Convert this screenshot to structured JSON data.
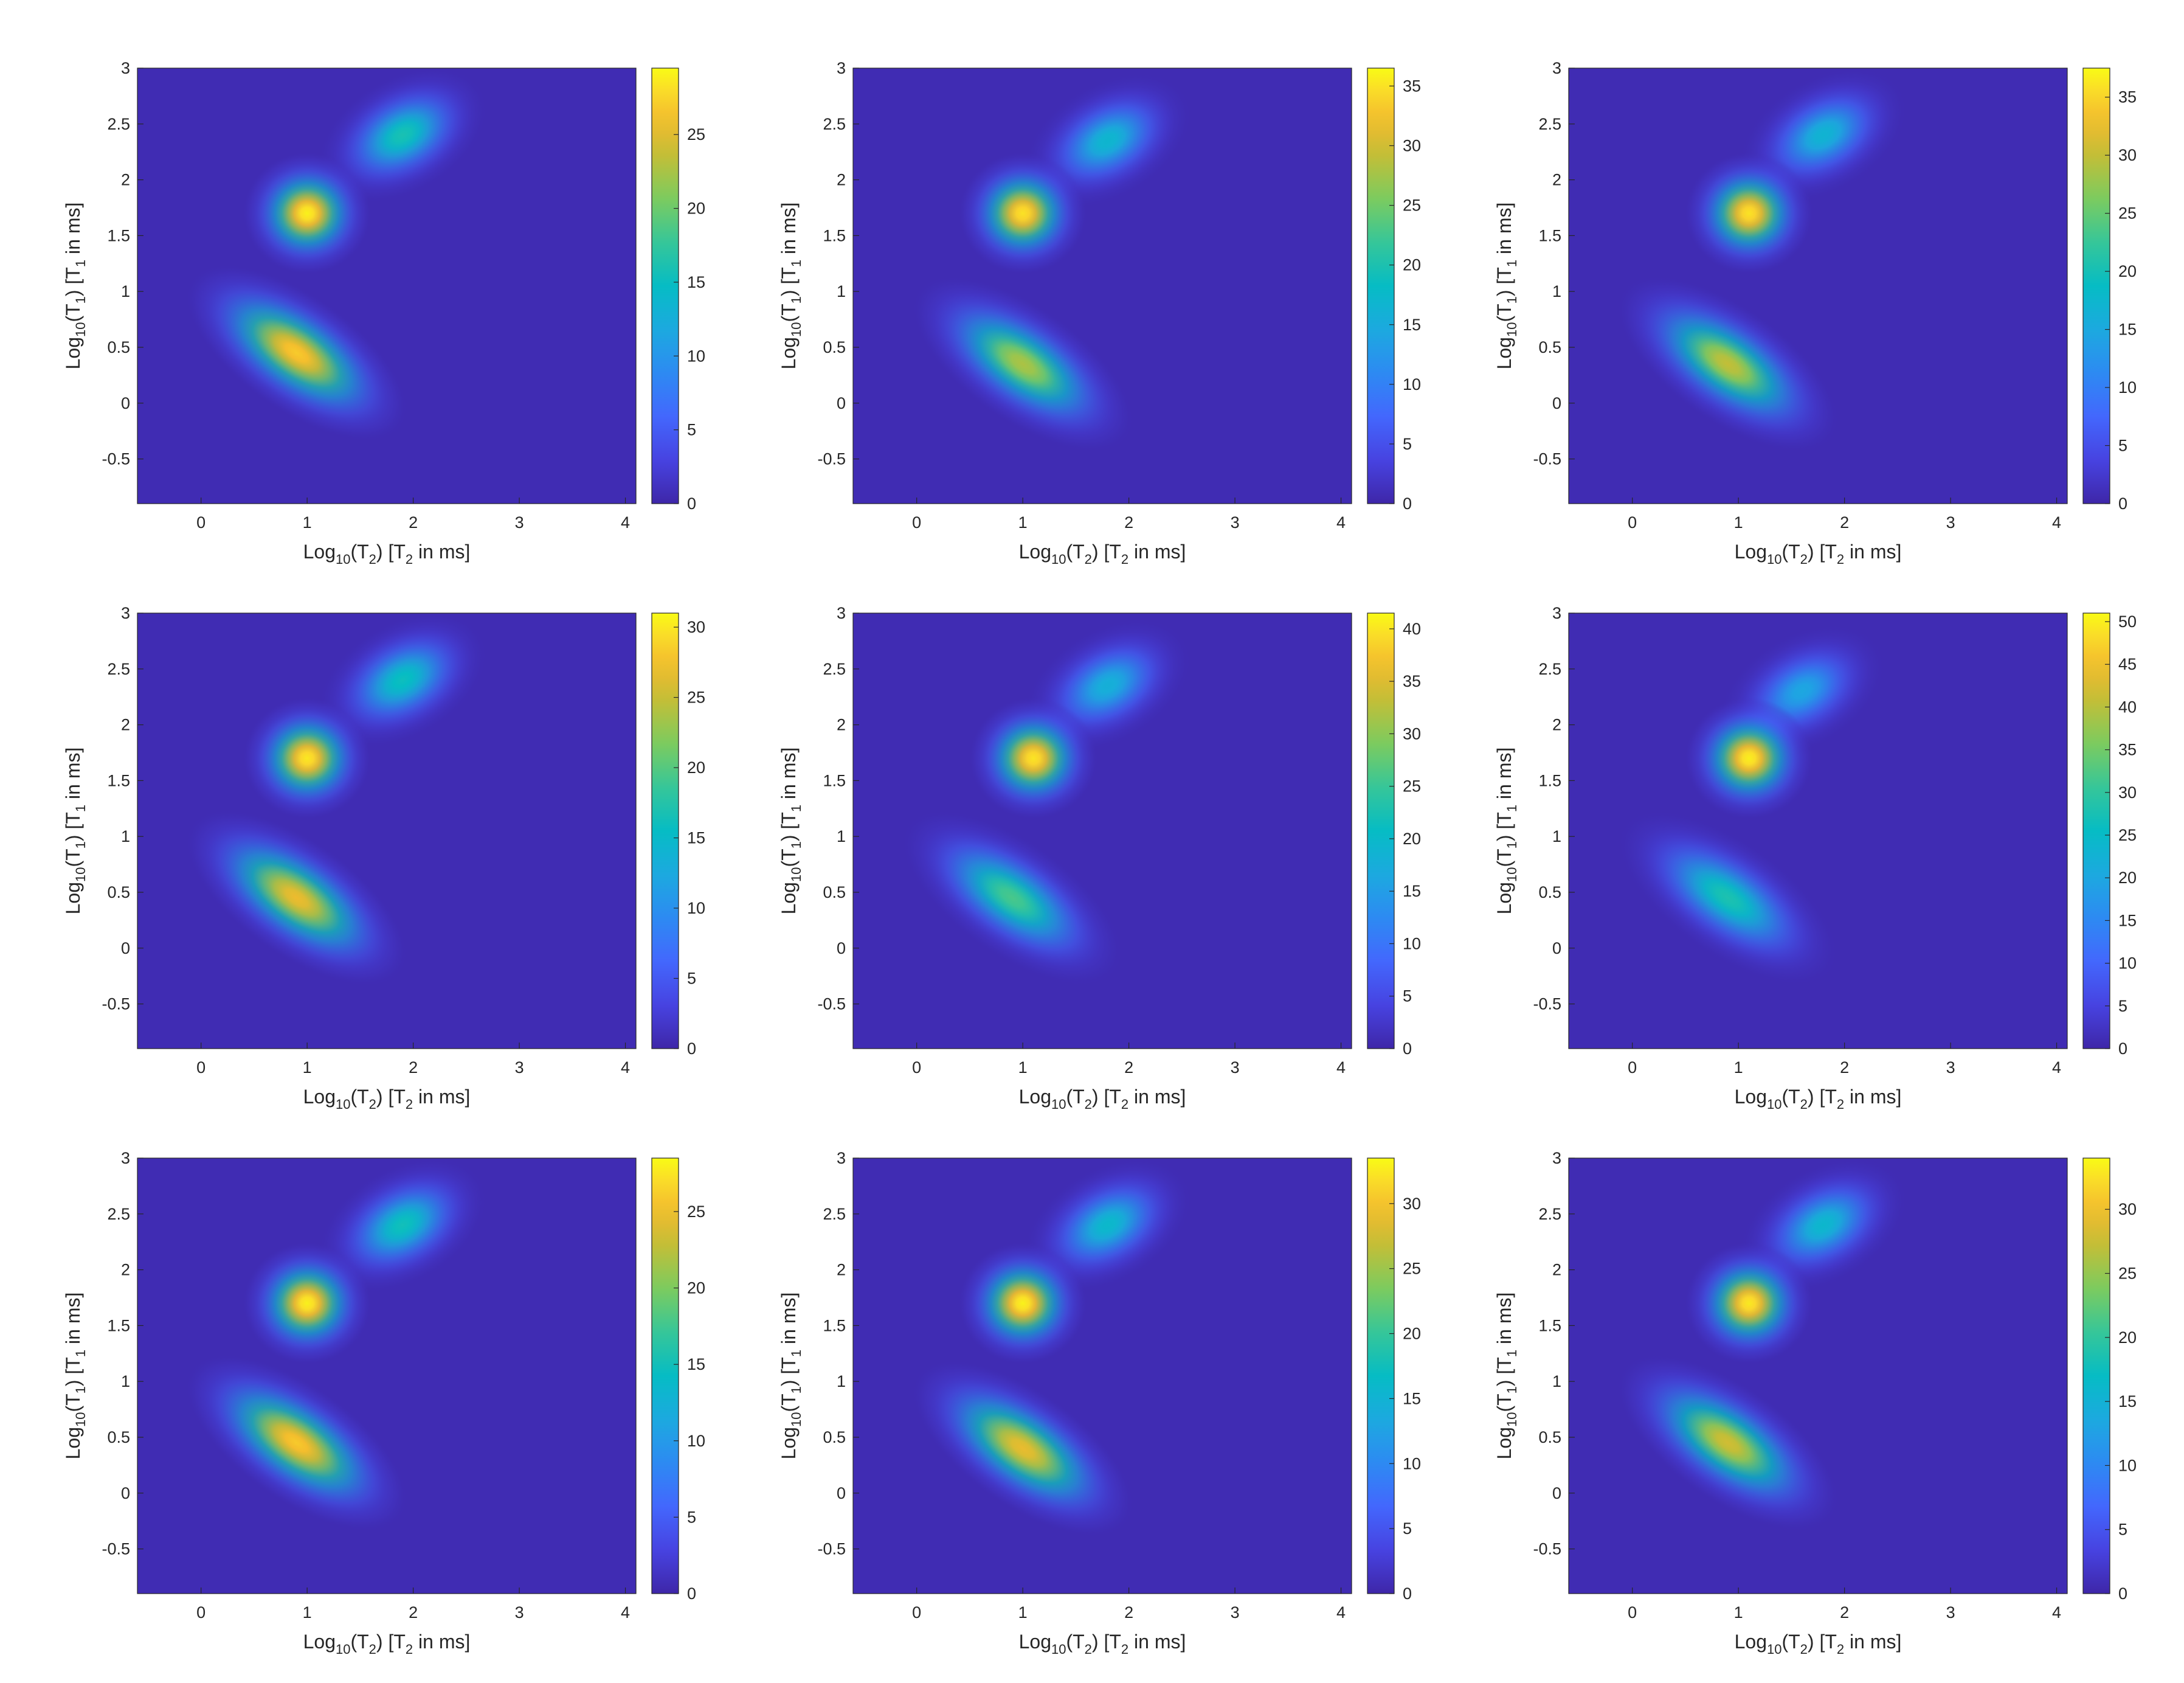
{
  "figure": {
    "colormap": "parula",
    "panel_count": 9,
    "layout": "3x3 grid"
  },
  "axes_text": {
    "xlabel": {
      "pre": "Log",
      "sub1": "10",
      "mid": "(T",
      "sub2": "2",
      "post": ")  [T",
      "sub3": "2",
      "end": " in ms]"
    },
    "ylabel": {
      "pre": "Log",
      "sub1": "10",
      "mid": "(T",
      "sub2": "1",
      "post": ")  [T",
      "sub3": "1",
      "end": " in ms]"
    }
  },
  "chart_data": [
    {
      "type": "heatmap",
      "xlabel": "Log10(T2)  [T2 in ms]",
      "ylabel": "Log10(T1)  [T1 in ms]",
      "xlim": [
        -0.6,
        4.1
      ],
      "ylim": [
        -0.9,
        3.0
      ],
      "xticks": [
        "0",
        "1",
        "2",
        "3",
        "4"
      ],
      "yticks": [
        "-0.5",
        "0",
        "0.5",
        "1",
        "1.5",
        "2",
        "2.5",
        "3"
      ],
      "colorbar": {
        "min": 0,
        "max": 29.5,
        "ticks": [
          "0",
          "5",
          "10",
          "15",
          "20",
          "25"
        ]
      },
      "peaks": [
        {
          "x": 1.0,
          "y": 1.7,
          "value": 29
        },
        {
          "x": 0.9,
          "y": 0.45,
          "value": 27
        },
        {
          "x": 1.9,
          "y": 2.4,
          "value": 16
        }
      ]
    },
    {
      "type": "heatmap",
      "xlabel": "Log10(T2)  [T2 in ms]",
      "ylabel": "Log10(T1)  [T1 in ms]",
      "xlim": [
        -0.6,
        4.1
      ],
      "ylim": [
        -0.9,
        3.0
      ],
      "xticks": [
        "0",
        "1",
        "2",
        "3",
        "4"
      ],
      "yticks": [
        "-0.5",
        "0",
        "0.5",
        "1",
        "1.5",
        "2",
        "2.5",
        "3"
      ],
      "colorbar": {
        "min": 0,
        "max": 36.5,
        "ticks": [
          "0",
          "5",
          "10",
          "15",
          "20",
          "25",
          "30",
          "35"
        ]
      },
      "peaks": [
        {
          "x": 1.0,
          "y": 1.7,
          "value": 35
        },
        {
          "x": 1.0,
          "y": 0.35,
          "value": 28
        },
        {
          "x": 1.8,
          "y": 2.35,
          "value": 17
        }
      ]
    },
    {
      "type": "heatmap",
      "xlabel": "Log10(T2)  [T2 in ms]",
      "ylabel": "Log10(T1)  [T1 in ms]",
      "xlim": [
        -0.6,
        4.1
      ],
      "ylim": [
        -0.9,
        3.0
      ],
      "xticks": [
        "0",
        "1",
        "2",
        "3",
        "4"
      ],
      "yticks": [
        "-0.5",
        "0",
        "0.5",
        "1",
        "1.5",
        "2",
        "2.5",
        "3"
      ],
      "colorbar": {
        "min": 0,
        "max": 37.5,
        "ticks": [
          "0",
          "5",
          "10",
          "15",
          "20",
          "25",
          "30",
          "35"
        ]
      },
      "peaks": [
        {
          "x": 1.1,
          "y": 1.7,
          "value": 36
        },
        {
          "x": 0.9,
          "y": 0.35,
          "value": 30
        },
        {
          "x": 1.8,
          "y": 2.4,
          "value": 17
        }
      ]
    },
    {
      "type": "heatmap",
      "xlabel": "Log10(T2)  [T2 in ms]",
      "ylabel": "Log10(T1)  [T1 in ms]",
      "xlim": [
        -0.6,
        4.1
      ],
      "ylim": [
        -0.9,
        3.0
      ],
      "xticks": [
        "0",
        "1",
        "2",
        "3",
        "4"
      ],
      "yticks": [
        "-0.5",
        "0",
        "0.5",
        "1",
        "1.5",
        "2",
        "2.5",
        "3"
      ],
      "colorbar": {
        "min": 0,
        "max": 31,
        "ticks": [
          "0",
          "5",
          "10",
          "15",
          "20",
          "25",
          "30"
        ]
      },
      "peaks": [
        {
          "x": 1.0,
          "y": 1.7,
          "value": 30
        },
        {
          "x": 0.9,
          "y": 0.45,
          "value": 27
        },
        {
          "x": 1.9,
          "y": 2.4,
          "value": 16
        }
      ]
    },
    {
      "type": "heatmap",
      "xlabel": "Log10(T2)  [T2 in ms]",
      "ylabel": "Log10(T1)  [T1 in ms]",
      "xlim": [
        -0.6,
        4.1
      ],
      "ylim": [
        -0.9,
        3.0
      ],
      "xticks": [
        "0",
        "1",
        "2",
        "3",
        "4"
      ],
      "yticks": [
        "-0.5",
        "0",
        "0.5",
        "1",
        "1.5",
        "2",
        "2.5",
        "3"
      ],
      "colorbar": {
        "min": 0,
        "max": 41.5,
        "ticks": [
          "0",
          "5",
          "10",
          "15",
          "20",
          "25",
          "30",
          "35",
          "40"
        ]
      },
      "peaks": [
        {
          "x": 1.1,
          "y": 1.7,
          "value": 40
        },
        {
          "x": 0.9,
          "y": 0.45,
          "value": 26
        },
        {
          "x": 1.8,
          "y": 2.35,
          "value": 18
        }
      ]
    },
    {
      "type": "heatmap",
      "xlabel": "Log10(T2)  [T2 in ms]",
      "ylabel": "Log10(T1)  [T1 in ms]",
      "xlim": [
        -0.6,
        4.1
      ],
      "ylim": [
        -0.9,
        3.0
      ],
      "xticks": [
        "0",
        "1",
        "2",
        "3",
        "4"
      ],
      "yticks": [
        "-0.5",
        "0",
        "0.5",
        "1",
        "1.5",
        "2",
        "2.5",
        "3"
      ],
      "colorbar": {
        "min": 0,
        "max": 51,
        "ticks": [
          "0",
          "5",
          "10",
          "15",
          "20",
          "25",
          "30",
          "35",
          "40",
          "45",
          "50"
        ]
      },
      "peaks": [
        {
          "x": 1.1,
          "y": 1.7,
          "value": 50
        },
        {
          "x": 0.9,
          "y": 0.45,
          "value": 28
        },
        {
          "x": 1.6,
          "y": 2.3,
          "value": 20
        }
      ]
    },
    {
      "type": "heatmap",
      "xlabel": "Log10(T2)  [T2 in ms]",
      "ylabel": "Log10(T1)  [T1 in ms]",
      "xlim": [
        -0.6,
        4.1
      ],
      "ylim": [
        -0.9,
        3.0
      ],
      "xticks": [
        "0",
        "1",
        "2",
        "3",
        "4"
      ],
      "yticks": [
        "-0.5",
        "0",
        "0.5",
        "1",
        "1.5",
        "2",
        "2.5",
        "3"
      ],
      "colorbar": {
        "min": 0,
        "max": 28.5,
        "ticks": [
          "0",
          "5",
          "10",
          "15",
          "20",
          "25"
        ]
      },
      "peaks": [
        {
          "x": 1.0,
          "y": 1.7,
          "value": 28
        },
        {
          "x": 0.9,
          "y": 0.45,
          "value": 26
        },
        {
          "x": 1.9,
          "y": 2.4,
          "value": 15
        }
      ]
    },
    {
      "type": "heatmap",
      "xlabel": "Log10(T2)  [T2 in ms]",
      "ylabel": "Log10(T1)  [T1 in ms]",
      "xlim": [
        -0.6,
        4.1
      ],
      "ylim": [
        -0.9,
        3.0
      ],
      "xticks": [
        "0",
        "1",
        "2",
        "3",
        "4"
      ],
      "yticks": [
        "-0.5",
        "0",
        "0.5",
        "1",
        "1.5",
        "2",
        "2.5",
        "3"
      ],
      "colorbar": {
        "min": 0,
        "max": 33.5,
        "ticks": [
          "0",
          "5",
          "10",
          "15",
          "20",
          "25",
          "30"
        ]
      },
      "peaks": [
        {
          "x": 1.0,
          "y": 1.7,
          "value": 33
        },
        {
          "x": 1.0,
          "y": 0.4,
          "value": 29
        },
        {
          "x": 1.8,
          "y": 2.4,
          "value": 16
        }
      ]
    },
    {
      "type": "heatmap",
      "xlabel": "Log10(T2)  [T2 in ms]",
      "ylabel": "Log10(T1)  [T1 in ms]",
      "xlim": [
        -0.6,
        4.1
      ],
      "ylim": [
        -0.9,
        3.0
      ],
      "xticks": [
        "0",
        "1",
        "2",
        "3",
        "4"
      ],
      "yticks": [
        "-0.5",
        "0",
        "0.5",
        "1",
        "1.5",
        "2",
        "2.5",
        "3"
      ],
      "colorbar": {
        "min": 0,
        "max": 34,
        "ticks": [
          "0",
          "5",
          "10",
          "15",
          "20",
          "25",
          "30"
        ]
      },
      "peaks": [
        {
          "x": 1.1,
          "y": 1.7,
          "value": 33
        },
        {
          "x": 0.9,
          "y": 0.45,
          "value": 28
        },
        {
          "x": 1.8,
          "y": 2.4,
          "value": 16
        }
      ]
    }
  ]
}
